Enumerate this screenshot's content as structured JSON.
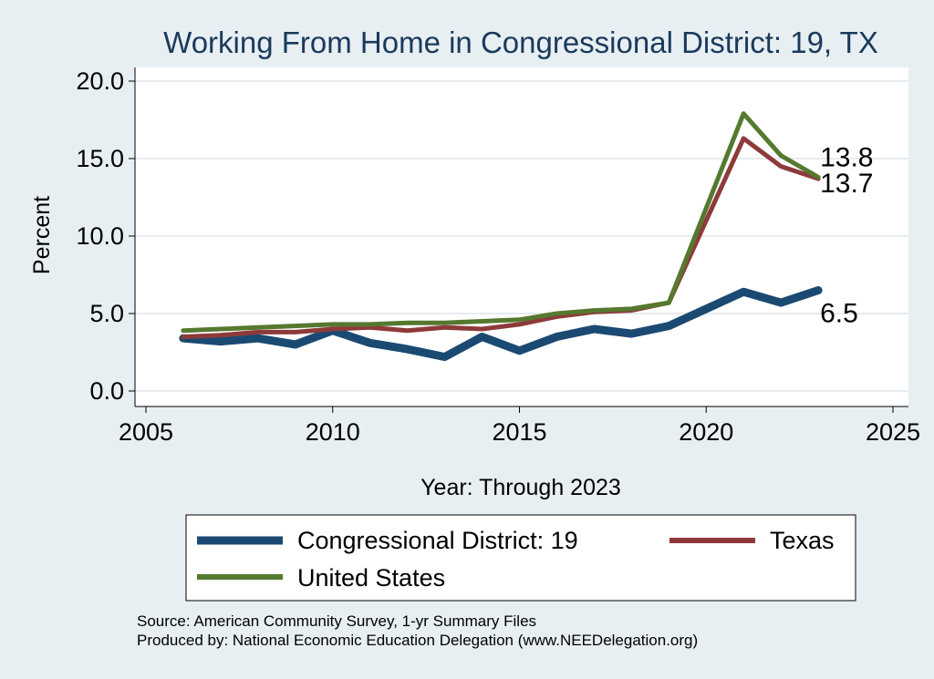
{
  "chart_data": {
    "type": "line",
    "title": "Working From Home in Congressional District: 19, TX",
    "xlabel": "Year: Through 2023",
    "ylabel": "Percent",
    "xlim": [
      2005,
      2025
    ],
    "ylim": [
      0,
      20
    ],
    "x_ticks": [
      "2005",
      "2010",
      "2015",
      "2020",
      "2025"
    ],
    "y_ticks": [
      "0.0",
      "5.0",
      "10.0",
      "15.0",
      "20.0"
    ],
    "grid": true,
    "legend_position": "bottom",
    "x": [
      2006,
      2007,
      2008,
      2009,
      2010,
      2011,
      2012,
      2013,
      2014,
      2015,
      2016,
      2017,
      2018,
      2019,
      2021,
      2022,
      2023
    ],
    "series": [
      {
        "name": "Congressional District: 19",
        "color": "#1a4a72",
        "values": [
          3.4,
          3.2,
          3.4,
          3.0,
          3.9,
          3.1,
          2.7,
          2.2,
          3.5,
          2.6,
          3.5,
          4.0,
          3.7,
          4.2,
          6.4,
          5.7,
          6.5
        ],
        "end_label": "6.5"
      },
      {
        "name": "Texas",
        "color": "#8e3a3a",
        "values": [
          3.5,
          3.6,
          3.8,
          3.8,
          4.0,
          4.1,
          3.9,
          4.1,
          4.0,
          4.3,
          4.8,
          5.1,
          5.2,
          5.7,
          16.3,
          14.5,
          13.7
        ],
        "end_label": "13.7"
      },
      {
        "name": "United States",
        "color": "#55792f",
        "values": [
          3.9,
          4.0,
          4.1,
          4.2,
          4.3,
          4.3,
          4.4,
          4.4,
          4.5,
          4.6,
          5.0,
          5.2,
          5.3,
          5.7,
          17.9,
          15.2,
          13.8
        ],
        "end_label": "13.8"
      }
    ],
    "notes": [
      "Source: American Community Survey, 1-yr Summary Files",
      "Produced by: National Economic Education Delegation (www.NEEDelegation.org)"
    ]
  }
}
